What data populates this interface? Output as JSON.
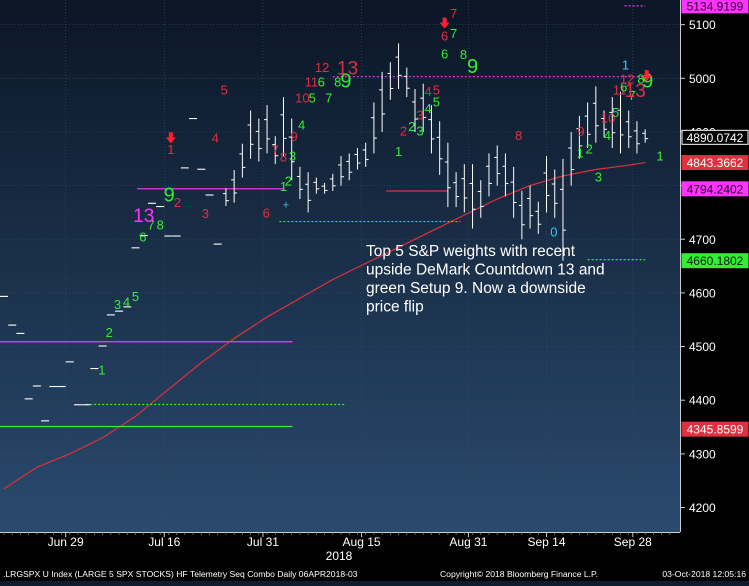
{
  "chart_data": {
    "type": "bar",
    "subtype": "ohlc-price-bars-with-demark-annotations",
    "ylim": [
      4150,
      5150
    ],
    "ytick_values": [
      4200,
      4300,
      4400,
      4500,
      4600,
      4700,
      4800,
      4900,
      5000,
      5100
    ],
    "ytick_labels": [
      "4200",
      "4300",
      "4400",
      "4500",
      "4600",
      "4700",
      "4800",
      "4900",
      "5000",
      "5100"
    ],
    "xtick_labels": [
      "Jun 29",
      "Jul 16",
      "Jul 31",
      "Aug 15",
      "Aug 31",
      "Sep 14",
      "Sep 28"
    ],
    "year_label": "2018",
    "grid": true,
    "bars": [
      {
        "x": 0,
        "h": 4595,
        "l": 4592
      },
      {
        "x": 1,
        "h": 4543,
        "l": 4537
      },
      {
        "x": 2,
        "h": 4527,
        "l": 4522
      },
      {
        "x": 3,
        "h": 4405,
        "l": 4400
      },
      {
        "x": 4,
        "h": 4429,
        "l": 4424
      },
      {
        "x": 5,
        "h": 4364,
        "l": 4359
      },
      {
        "x": 6,
        "h": 4428,
        "l": 4423
      },
      {
        "x": 7,
        "h": 4428,
        "l": 4423
      },
      {
        "x": 8,
        "h": 4474,
        "l": 4469
      },
      {
        "x": 9,
        "h": 4394,
        "l": 4389
      },
      {
        "x": 10,
        "h": 4394,
        "l": 4389
      },
      {
        "x": 11,
        "h": 4463,
        "l": 4455
      },
      {
        "x": 12,
        "h": 4505,
        "l": 4497
      },
      {
        "x": 13,
        "h": 4562,
        "l": 4556
      },
      {
        "x": 14,
        "h": 4569,
        "l": 4563
      },
      {
        "x": 15,
        "h": 4577,
        "l": 4571
      },
      {
        "x": 16,
        "h": 4688,
        "l": 4680
      },
      {
        "x": 17,
        "h": 4710,
        "l": 4704
      },
      {
        "x": 18,
        "h": 4770,
        "l": 4764
      },
      {
        "x": 19,
        "h": 4764,
        "l": 4758
      },
      {
        "x": 20,
        "h": 4709,
        "l": 4703
      },
      {
        "x": 21,
        "h": 4709,
        "l": 4703
      },
      {
        "x": 22,
        "h": 4835,
        "l": 4831
      },
      {
        "x": 23,
        "h": 4928,
        "l": 4922
      },
      {
        "x": 24,
        "h": 4832,
        "l": 4829
      },
      {
        "x": 25,
        "h": 4785,
        "l": 4780
      },
      {
        "x": 26,
        "h": 4693,
        "l": 4689
      },
      {
        "x": 27,
        "h": 4795,
        "l": 4762
      },
      {
        "x": 28,
        "h": 4829,
        "l": 4768
      },
      {
        "x": 29,
        "h": 4878,
        "l": 4815
      },
      {
        "x": 30,
        "h": 4940,
        "l": 4850
      },
      {
        "x": 31,
        "h": 4925,
        "l": 4845
      },
      {
        "x": 32,
        "h": 4950,
        "l": 4860
      },
      {
        "x": 33,
        "h": 4892,
        "l": 4840
      },
      {
        "x": 34,
        "h": 4965,
        "l": 4855
      },
      {
        "x": 35,
        "h": 4925,
        "l": 4810
      },
      {
        "x": 36,
        "h": 4835,
        "l": 4775
      },
      {
        "x": 37,
        "h": 4825,
        "l": 4750
      },
      {
        "x": 38,
        "h": 4815,
        "l": 4785
      },
      {
        "x": 39,
        "h": 4805,
        "l": 4785
      },
      {
        "x": 40,
        "h": 4822,
        "l": 4790
      },
      {
        "x": 41,
        "h": 4855,
        "l": 4800
      },
      {
        "x": 42,
        "h": 4860,
        "l": 4810
      },
      {
        "x": 43,
        "h": 4870,
        "l": 4830
      },
      {
        "x": 44,
        "h": 4880,
        "l": 4835
      },
      {
        "x": 45,
        "h": 4955,
        "l": 4860
      },
      {
        "x": 46,
        "h": 5012,
        "l": 4900
      },
      {
        "x": 47,
        "h": 5030,
        "l": 4960
      },
      {
        "x": 48,
        "h": 5065,
        "l": 4980
      },
      {
        "x": 49,
        "h": 5020,
        "l": 4965
      },
      {
        "x": 50,
        "h": 4980,
        "l": 4900
      },
      {
        "x": 51,
        "h": 4990,
        "l": 4900
      },
      {
        "x": 52,
        "h": 4950,
        "l": 4860
      },
      {
        "x": 53,
        "h": 4920,
        "l": 4820
      },
      {
        "x": 54,
        "h": 4880,
        "l": 4760
      },
      {
        "x": 55,
        "h": 4825,
        "l": 4760
      },
      {
        "x": 56,
        "h": 4840,
        "l": 4750
      },
      {
        "x": 57,
        "h": 4840,
        "l": 4720
      },
      {
        "x": 58,
        "h": 4810,
        "l": 4740
      },
      {
        "x": 59,
        "h": 4860,
        "l": 4780
      },
      {
        "x": 60,
        "h": 4875,
        "l": 4800
      },
      {
        "x": 61,
        "h": 4860,
        "l": 4780
      },
      {
        "x": 62,
        "h": 4835,
        "l": 4740
      },
      {
        "x": 63,
        "h": 4790,
        "l": 4700
      },
      {
        "x": 64,
        "h": 4800,
        "l": 4720
      },
      {
        "x": 65,
        "h": 4770,
        "l": 4710
      },
      {
        "x": 66,
        "h": 4855,
        "l": 4750
      },
      {
        "x": 67,
        "h": 4830,
        "l": 4740
      },
      {
        "x": 68,
        "h": 4850,
        "l": 4660
      },
      {
        "x": 69,
        "h": 4900,
        "l": 4800
      },
      {
        "x": 70,
        "h": 4930,
        "l": 4850
      },
      {
        "x": 71,
        "h": 4955,
        "l": 4870
      },
      {
        "x": 72,
        "h": 4985,
        "l": 4880
      },
      {
        "x": 73,
        "h": 4940,
        "l": 4890
      },
      {
        "x": 74,
        "h": 4965,
        "l": 4870
      },
      {
        "x": 75,
        "h": 4975,
        "l": 4860
      },
      {
        "x": 76,
        "h": 4940,
        "l": 4870
      },
      {
        "x": 77,
        "h": 4920,
        "l": 4860
      },
      {
        "x": 78,
        "h": 4905,
        "l": 4880
      }
    ],
    "moving_average": [
      {
        "x": 0,
        "y": 4235
      },
      {
        "x": 4,
        "y": 4275
      },
      {
        "x": 8,
        "y": 4300
      },
      {
        "x": 12,
        "y": 4330
      },
      {
        "x": 16,
        "y": 4370
      },
      {
        "x": 20,
        "y": 4420
      },
      {
        "x": 24,
        "y": 4470
      },
      {
        "x": 28,
        "y": 4515
      },
      {
        "x": 32,
        "y": 4555
      },
      {
        "x": 36,
        "y": 4590
      },
      {
        "x": 40,
        "y": 4625
      },
      {
        "x": 44,
        "y": 4655
      },
      {
        "x": 48,
        "y": 4685
      },
      {
        "x": 52,
        "y": 4715
      },
      {
        "x": 56,
        "y": 4745
      },
      {
        "x": 60,
        "y": 4775
      },
      {
        "x": 64,
        "y": 4800
      },
      {
        "x": 68,
        "y": 4818
      },
      {
        "x": 72,
        "y": 4830
      },
      {
        "x": 76,
        "y": 4838
      },
      {
        "x": 78,
        "y": 4843
      }
    ],
    "reference_lines": [
      {
        "color": "#ff33ff",
        "y": 4509,
        "x0": -0.6,
        "x1": 35.1,
        "dash": false
      },
      {
        "color": "#ff33ff",
        "y": 4794,
        "x0": 16.2,
        "x1": 34.0,
        "dash": false
      },
      {
        "color": "#ff33ff",
        "y": 5003,
        "x0": 40.0,
        "x1": 78.0,
        "dash": true
      },
      {
        "color": "#ff33ff",
        "y": 5135,
        "x0": 75.5,
        "x1": 78.0,
        "dash": true
      },
      {
        "color": "#e03040",
        "y": 4790,
        "x0": 46.5,
        "x1": 54.0,
        "dash": false
      },
      {
        "color": "#33ee33",
        "y": 4351,
        "x0": -0.6,
        "x1": 35.1,
        "dash": false
      },
      {
        "color": "#33ee33",
        "y": 4392,
        "x0": 10.0,
        "x1": 41.5,
        "dash": true
      },
      {
        "color": "#33ee33",
        "y": 4733,
        "x0": 33.5,
        "x1": 55.5,
        "dash": true
      },
      {
        "color": "#33ee33",
        "y": 4662,
        "x0": 71.0,
        "x1": 78.0,
        "dash": true
      }
    ],
    "demark_labels": [
      {
        "t": "1",
        "x": 11.9,
        "y": 4448,
        "c": "#33ee33",
        "s": 13
      },
      {
        "t": "2",
        "x": 12.8,
        "y": 4518,
        "c": "#33ee33",
        "s": 13
      },
      {
        "t": "3",
        "x": 13.8,
        "y": 4570,
        "c": "#33ee33",
        "s": 13
      },
      {
        "t": "4",
        "x": 14.9,
        "y": 4575,
        "c": "#33ee33",
        "s": 13
      },
      {
        "t": "5",
        "x": 16.0,
        "y": 4585,
        "c": "#33ee33",
        "s": 13
      },
      {
        "t": "6",
        "x": 16.9,
        "y": 4696,
        "c": "#33ee33",
        "s": 13
      },
      {
        "t": "7",
        "x": 17.9,
        "y": 4718,
        "c": "#33ee33",
        "s": 13
      },
      {
        "t": "8",
        "x": 19.0,
        "y": 4718,
        "c": "#33ee33",
        "s": 13
      },
      {
        "t": "9",
        "x": 20.1,
        "y": 4770,
        "c": "#33ee33",
        "s": 20
      },
      {
        "t": "13",
        "x": 17.0,
        "y": 4732,
        "c": "#ff33ff",
        "s": 19
      },
      {
        "t": "1",
        "x": 20.3,
        "y": 4859,
        "c": "#e03040",
        "s": 13
      },
      {
        "t": "2",
        "x": 21.1,
        "y": 4760,
        "c": "#e03040",
        "s": 13
      },
      {
        "t": "3",
        "x": 24.5,
        "y": 4740,
        "c": "#e03040",
        "s": 13
      },
      {
        "t": "4",
        "x": 25.7,
        "y": 4880,
        "c": "#e03040",
        "s": 13
      },
      {
        "t": "5",
        "x": 26.8,
        "y": 4970,
        "c": "#e03040",
        "s": 13
      },
      {
        "t": "6",
        "x": 31.9,
        "y": 4741,
        "c": "#e03040",
        "s": 13
      },
      {
        "t": "7",
        "x": 33.0,
        "y": 4858,
        "c": "#e03040",
        "s": 13
      },
      {
        "t": "8",
        "x": 34.0,
        "y": 4845,
        "c": "#e03040",
        "s": 13
      },
      {
        "t": "1",
        "x": 34.0,
        "y": 4790,
        "c": "#33ee33",
        "s": 13
      },
      {
        "t": "2",
        "x": 34.6,
        "y": 4800,
        "c": "#33ee33",
        "s": 13
      },
      {
        "t": "3",
        "x": 35.1,
        "y": 4847,
        "c": "#33ee33",
        "s": 13
      },
      {
        "t": "+",
        "x": 34.3,
        "y": 4757,
        "c": "#33ccff",
        "s": 11
      },
      {
        "t": "9",
        "x": 35.3,
        "y": 4883,
        "c": "#e03040",
        "s": 13
      },
      {
        "t": "4",
        "x": 36.2,
        "y": 4905,
        "c": "#33ee33",
        "s": 13
      },
      {
        "t": "10",
        "x": 36.3,
        "y": 4955,
        "c": "#e03040",
        "s": 13
      },
      {
        "t": "5",
        "x": 37.5,
        "y": 4955,
        "c": "#33ee33",
        "s": 13
      },
      {
        "t": "11",
        "x": 37.4,
        "y": 4985,
        "c": "#e03040",
        "s": 13
      },
      {
        "t": "6",
        "x": 38.6,
        "y": 4985,
        "c": "#33ee33",
        "s": 13
      },
      {
        "t": "12",
        "x": 38.7,
        "y": 5012,
        "c": "#e03040",
        "s": 13
      },
      {
        "t": "7",
        "x": 39.5,
        "y": 4955,
        "c": "#33ee33",
        "s": 13
      },
      {
        "t": "8",
        "x": 40.6,
        "y": 4985,
        "c": "#33ee33",
        "s": 13
      },
      {
        "t": "9",
        "x": 41.6,
        "y": 4983,
        "c": "#33ee33",
        "s": 20
      },
      {
        "t": "13",
        "x": 41.8,
        "y": 5007,
        "c": "#e03040",
        "s": 19
      },
      {
        "t": "1",
        "x": 48.0,
        "y": 4855,
        "c": "#33ee33",
        "s": 13
      },
      {
        "t": "2",
        "x": 48.6,
        "y": 4893,
        "c": "#e03040",
        "s": 13
      },
      {
        "t": "2",
        "x": 49.6,
        "y": 4902,
        "c": "#33ee33",
        "s": 13
      },
      {
        "t": "3",
        "x": 50.6,
        "y": 4923,
        "c": "#e03040",
        "s": 13
      },
      {
        "t": "3",
        "x": 50.6,
        "y": 4893,
        "c": "#33ee33",
        "s": 13
      },
      {
        "t": "4",
        "x": 51.6,
        "y": 4967,
        "c": "#e03040",
        "s": 13
      },
      {
        "t": "4",
        "x": 51.6,
        "y": 4935,
        "c": "#33ee33",
        "s": 13
      },
      {
        "t": "5",
        "x": 52.6,
        "y": 4970,
        "c": "#e03040",
        "s": 13
      },
      {
        "t": "5",
        "x": 52.6,
        "y": 4947,
        "c": "#33ee33",
        "s": 13
      },
      {
        "t": "6",
        "x": 53.6,
        "y": 5070,
        "c": "#e03040",
        "s": 13
      },
      {
        "t": "6",
        "x": 53.6,
        "y": 5037,
        "c": "#33ee33",
        "s": 13
      },
      {
        "t": "7",
        "x": 54.7,
        "y": 5112,
        "c": "#e03040",
        "s": 13
      },
      {
        "t": "7",
        "x": 54.7,
        "y": 5075,
        "c": "#33ee33",
        "s": 13
      },
      {
        "t": "8",
        "x": 55.9,
        "y": 5036,
        "c": "#33ee33",
        "s": 13
      },
      {
        "t": "9",
        "x": 57.0,
        "y": 5010,
        "c": "#33ee33",
        "s": 20
      },
      {
        "t": "8",
        "x": 62.6,
        "y": 4885,
        "c": "#e03040",
        "s": 13
      },
      {
        "t": "0",
        "x": 66.9,
        "y": 4705,
        "c": "#33ccff",
        "s": 13
      },
      {
        "t": "9",
        "x": 70.2,
        "y": 4892,
        "c": "#e03040",
        "s": 13
      },
      {
        "t": "1",
        "x": 70.1,
        "y": 4852,
        "c": "#33ee33",
        "s": 13
      },
      {
        "t": "2",
        "x": 71.2,
        "y": 4860,
        "c": "#33ee33",
        "s": 13
      },
      {
        "t": "3",
        "x": 72.3,
        "y": 4808,
        "c": "#33ee33",
        "s": 13
      },
      {
        "t": "4",
        "x": 73.4,
        "y": 4885,
        "c": "#33ee33",
        "s": 13
      },
      {
        "t": "10",
        "x": 73.5,
        "y": 4918,
        "c": "#e03040",
        "s": 13
      },
      {
        "t": "5",
        "x": 74.4,
        "y": 4928,
        "c": "#33ee33",
        "s": 13
      },
      {
        "t": "11",
        "x": 74.9,
        "y": 4970,
        "c": "#e03040",
        "s": 13
      },
      {
        "t": "6",
        "x": 75.4,
        "y": 4975,
        "c": "#33ee33",
        "s": 13
      },
      {
        "t": "1",
        "x": 75.6,
        "y": 5016,
        "c": "#33ccff",
        "s": 13
      },
      {
        "t": "12",
        "x": 75.8,
        "y": 4990,
        "c": "#e03040",
        "s": 13
      },
      {
        "t": "7",
        "x": 76.4,
        "y": 4960,
        "c": "#33ee33",
        "s": 13
      },
      {
        "t": "13",
        "x": 76.8,
        "y": 4965,
        "c": "#e03040",
        "s": 19
      },
      {
        "t": "8",
        "x": 77.5,
        "y": 4990,
        "c": "#33ee33",
        "s": 13
      },
      {
        "t": "9",
        "x": 78.3,
        "y": 4983,
        "c": "#33ee33",
        "s": 20
      },
      {
        "t": "1",
        "x": 79.8,
        "y": 4847,
        "c": "#33ee33",
        "s": 13
      }
    ],
    "sell_arrows": [
      {
        "x": 20.3,
        "y": 4888
      },
      {
        "x": 53.6,
        "y": 5102
      },
      {
        "x": 78.2,
        "y": 5004
      }
    ],
    "price_tags": [
      {
        "text": "5134.9199",
        "y": 5135,
        "bg": "#ff33ff",
        "fg": "#1a0a1a",
        "border": "#ff33ff"
      },
      {
        "text": "4890.0742",
        "y": 4890,
        "bg": "#000000",
        "fg": "#ffffff",
        "border": "#ffffff"
      },
      {
        "text": "4843.3662",
        "y": 4843,
        "bg": "#e03040",
        "fg": "#ffffff",
        "border": "#e03040"
      },
      {
        "text": "4794.2402",
        "y": 4794,
        "bg": "#ff33ff",
        "fg": "#1a0a1a",
        "border": "#ff33ff"
      },
      {
        "text": "4660.1802",
        "y": 4660,
        "bg": "#33ee33",
        "fg": "#0a1a0a",
        "border": "#33ee33"
      },
      {
        "text": "4345.8599",
        "y": 4346,
        "bg": "#e03040",
        "fg": "#ffffff",
        "border": "#e03040"
      }
    ],
    "last_price": 4890.0742,
    "annotation_lines": [
      "Top 5 S&P weights with recent",
      "upside DeMark Countdown 13 and",
      "green Setup 9.  Now a downside",
      "price flip"
    ]
  },
  "footer": {
    "left": ".LRGSPX U Index (LARGE 5 SPX STOCKS) HF Telemetry Seq Combo  Daily 06APR2018-03",
    "center": "Copyright© 2018 Bloomberg Finance L.P.",
    "right": "03-Oct-2018 12:05:16"
  }
}
